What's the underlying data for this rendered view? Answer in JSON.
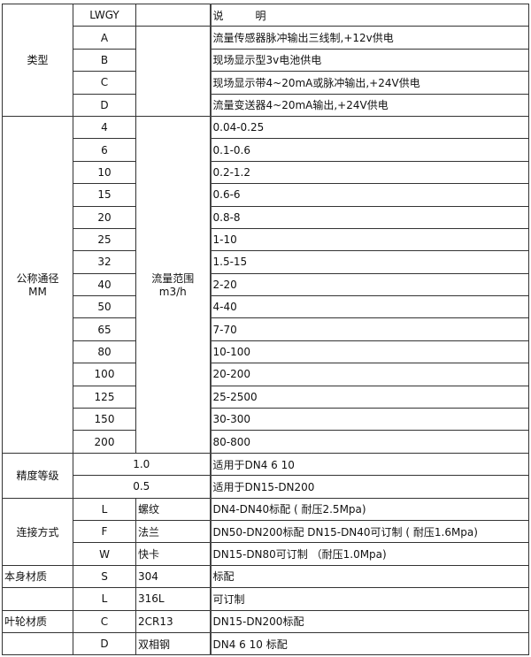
{
  "header": {
    "model": "LWGY",
    "description": "说　　　明"
  },
  "type": {
    "label": "类型",
    "items": [
      {
        "code": "A",
        "desc": "流量传感器脉冲输出三线制,+12v供电"
      },
      {
        "code": "B",
        "desc": "现场显示型3v电池供电"
      },
      {
        "code": "C",
        "desc": "现场显示带4~20mA或脉冲输出,+24V供电"
      },
      {
        "code": "D",
        "desc": "流量变送器4~20mA输出,+24V供电"
      }
    ]
  },
  "diameter": {
    "label": "公称通径",
    "unit": "MM",
    "flow_label": "流量范围",
    "flow_unit": "m3/h",
    "items": [
      {
        "dn": "4",
        "range": "0.04-0.25"
      },
      {
        "dn": "6",
        "range": "0.1-0.6"
      },
      {
        "dn": "10",
        "range": "0.2-1.2"
      },
      {
        "dn": "15",
        "range": "0.6-6"
      },
      {
        "dn": "20",
        "range": "0.8-8"
      },
      {
        "dn": "25",
        "range": "1-10"
      },
      {
        "dn": "32",
        "range": "1.5-15"
      },
      {
        "dn": "40",
        "range": "2-20"
      },
      {
        "dn": "50",
        "range": "4-40"
      },
      {
        "dn": "65",
        "range": "7-70"
      },
      {
        "dn": "80",
        "range": "10-100"
      },
      {
        "dn": "100",
        "range": "20-200"
      },
      {
        "dn": "125",
        "range": "25-2500"
      },
      {
        "dn": "150",
        "range": "30-300"
      },
      {
        "dn": "200",
        "range": "80-800"
      }
    ]
  },
  "accuracy": {
    "label": "精度等级",
    "items": [
      {
        "grade": "1.0",
        "desc": "适用于DN4  6  10"
      },
      {
        "grade": "0.5",
        "desc": "适用于DN15-DN200"
      }
    ]
  },
  "connection": {
    "label": "连接方式",
    "items": [
      {
        "code": "L",
        "name": "螺纹",
        "desc": "DN4-DN40标配 ( 耐压2.5Mpa)"
      },
      {
        "code": "F",
        "name": "法兰",
        "desc": "DN50-DN200标配 DN15-DN40可订制 ( 耐压1.6Mpa)"
      },
      {
        "code": "W",
        "name": "快卡",
        "desc": "DN15-DN80可订制 （耐压1.0Mpa)"
      }
    ]
  },
  "body_material": {
    "label": "本身材质",
    "items": [
      {
        "code": "S",
        "name": "304",
        "desc": "标配"
      },
      {
        "code": "L",
        "name": "316L",
        "desc": "可订制"
      }
    ]
  },
  "impeller_material": {
    "label": "叶轮材质",
    "items": [
      {
        "code": "C",
        "name": "2CR13",
        "desc": "DN15-DN200标配"
      },
      {
        "code": "D",
        "name": "双相钢",
        "desc": "DN4 6 10 标配"
      }
    ]
  }
}
